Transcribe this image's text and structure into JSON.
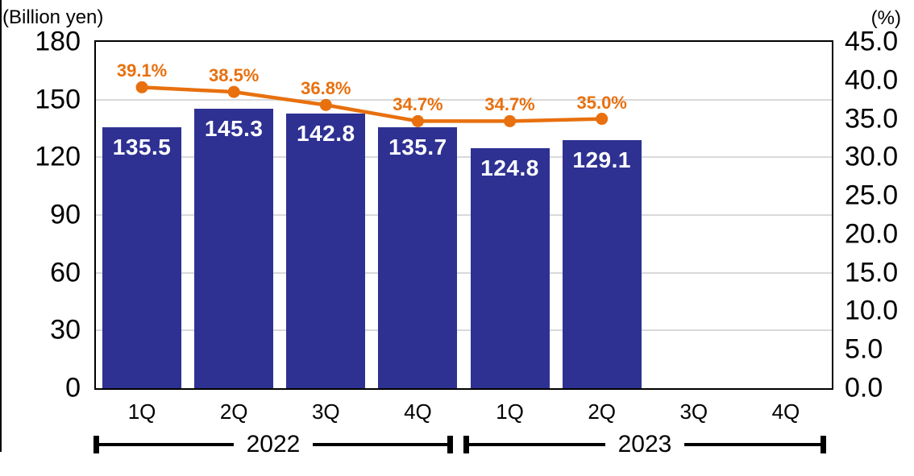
{
  "chart_data": {
    "type": "bar",
    "combo": "bar+line",
    "title": "",
    "categories": [
      "1Q",
      "2Q",
      "3Q",
      "4Q",
      "1Q",
      "2Q",
      "3Q",
      "4Q"
    ],
    "groups": [
      {
        "label": "2022",
        "from": 0,
        "to": 3
      },
      {
        "label": "2023",
        "from": 4,
        "to": 7
      }
    ],
    "series": [
      {
        "name": "quarterly-amount",
        "type": "bar",
        "axis": "left",
        "color": "#2E3192",
        "values": [
          135.5,
          145.3,
          142.8,
          135.7,
          124.8,
          129.1,
          null,
          null
        ],
        "data_labels": [
          "135.5",
          "145.3",
          "142.8",
          "135.7",
          "124.8",
          "129.1",
          "",
          ""
        ]
      },
      {
        "name": "quarterly-ratio",
        "type": "line",
        "axis": "right",
        "color": "#E8700E",
        "values": [
          39.1,
          38.5,
          36.8,
          34.7,
          34.7,
          35.0,
          null,
          null
        ],
        "data_labels": [
          "39.1%",
          "38.5%",
          "36.8%",
          "34.7%",
          "34.7%",
          "35.0%",
          "",
          ""
        ]
      }
    ],
    "left_axis": {
      "unit": "(Billion yen)",
      "min": 0,
      "max": 180,
      "step": 30,
      "tick_labels": [
        "180",
        "150",
        "120",
        "90",
        "60",
        "30",
        "0"
      ]
    },
    "right_axis": {
      "unit": "(%)",
      "min": 0.0,
      "max": 45.0,
      "step": 5.0,
      "tick_labels": [
        "45.0",
        "40.0",
        "35.0",
        "30.0",
        "25.0",
        "20.0",
        "15.0",
        "10.0",
        "5.0",
        "0.0"
      ]
    },
    "grid": true,
    "legend": "none",
    "colors": {
      "bar": "#2E3192",
      "line": "#E8700E",
      "bar_label_text": "#FFFFFF",
      "gridline": "#D9D9D9",
      "plot_border": "#000000"
    }
  }
}
